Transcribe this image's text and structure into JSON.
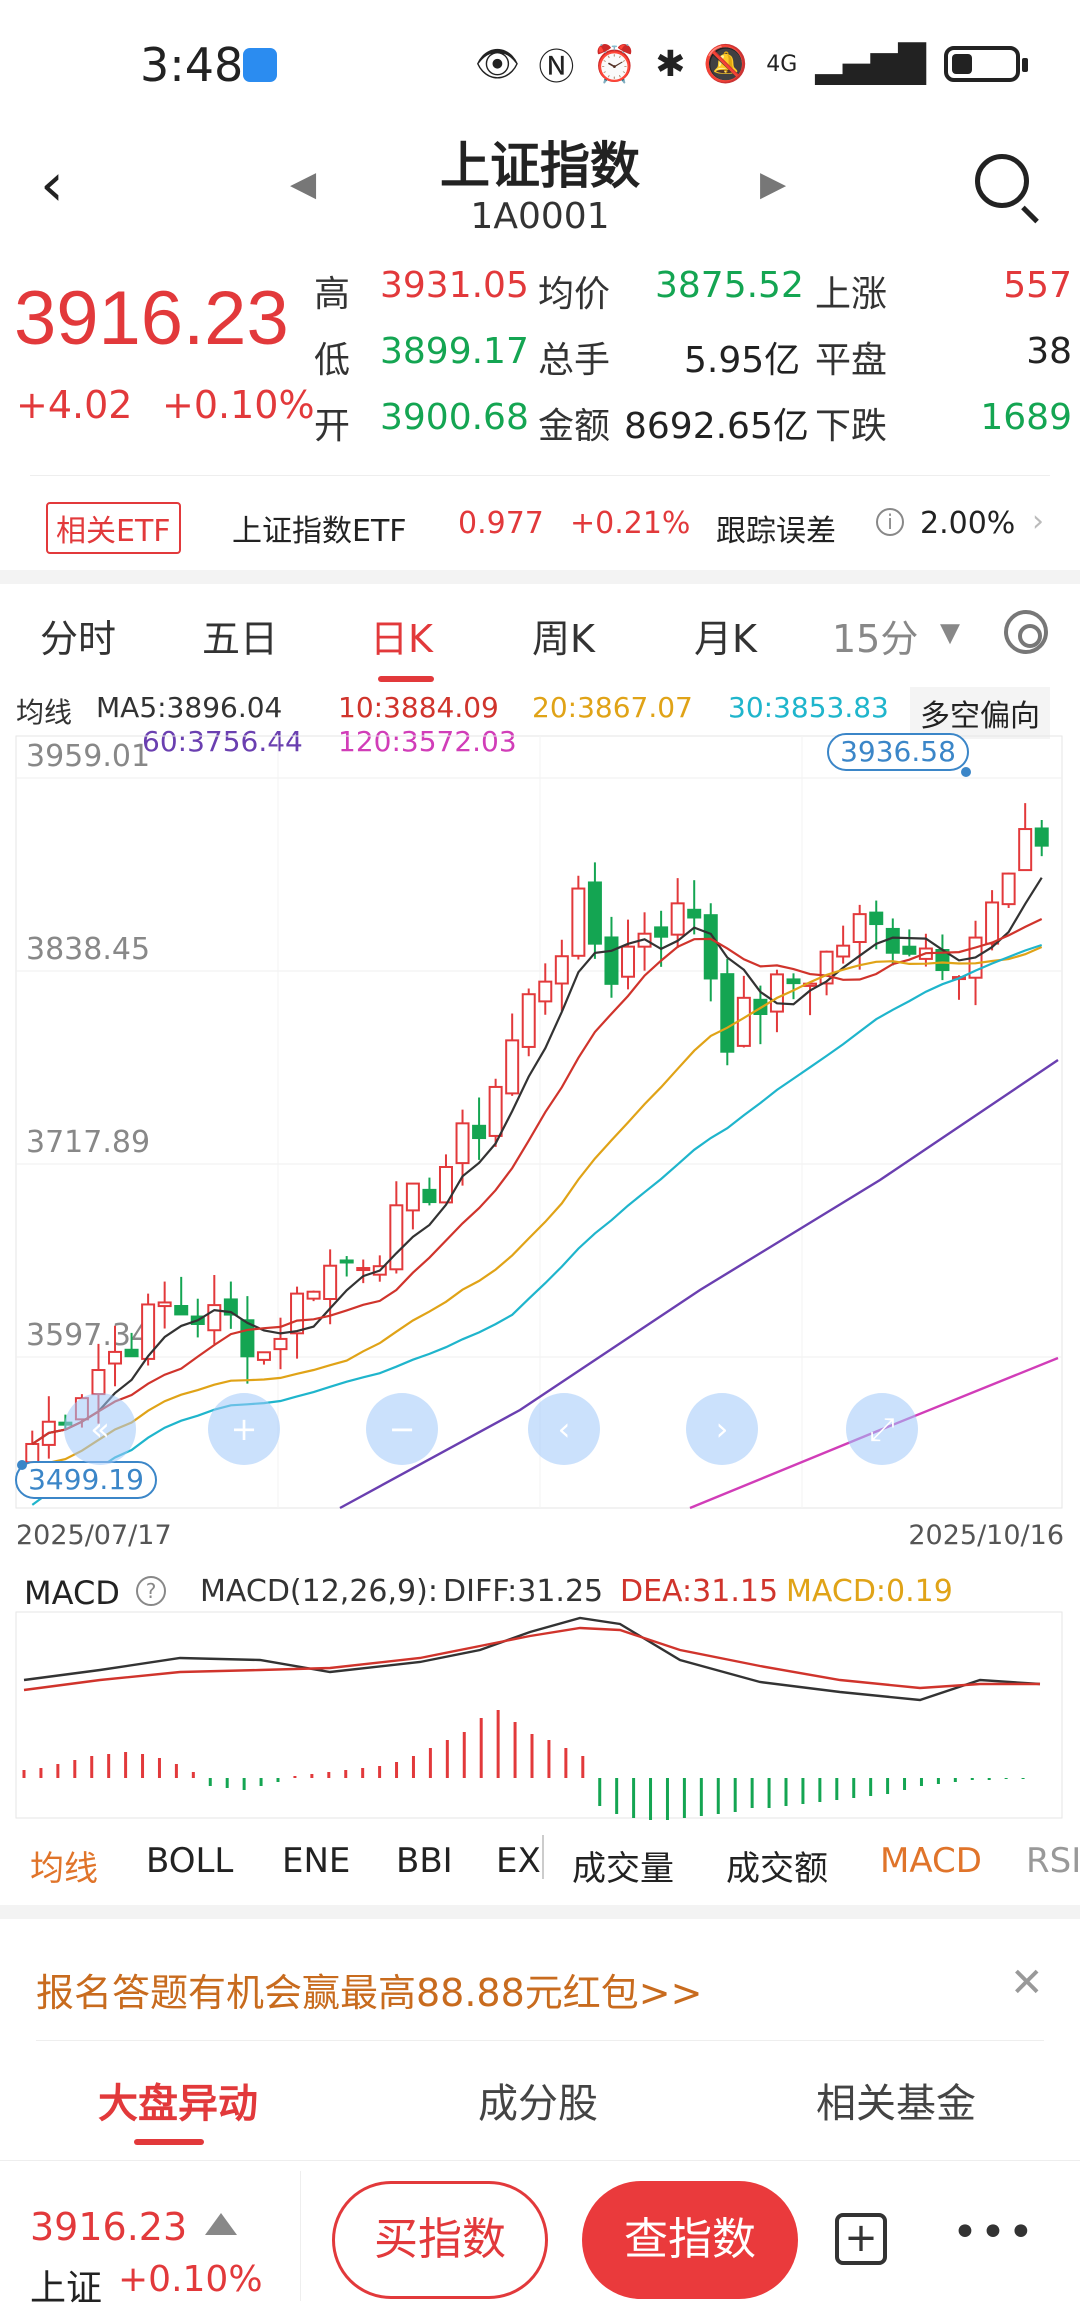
{
  "status": {
    "time": "3:48",
    "net": "4G"
  },
  "header": {
    "title": "上证指数",
    "code": "1A0001"
  },
  "quote": {
    "price": "3916.23",
    "change": "+4.02",
    "pct": "+0.10%",
    "cells": [
      {
        "label": "高",
        "value": "3931.05",
        "color": "red"
      },
      {
        "label": "均价",
        "value": "3875.52",
        "color": "green"
      },
      {
        "label": "上涨",
        "value": "557",
        "color": "red"
      },
      {
        "label": "低",
        "value": "3899.17",
        "color": "green"
      },
      {
        "label": "总手",
        "value": "5.95亿",
        "color": "black"
      },
      {
        "label": "平盘",
        "value": "38",
        "color": "black"
      },
      {
        "label": "开",
        "value": "3900.68",
        "color": "green"
      },
      {
        "label": "金额",
        "value": "8692.65亿",
        "color": "black"
      },
      {
        "label": "下跌",
        "value": "1689",
        "color": "green"
      }
    ]
  },
  "etf": {
    "badge": "相关ETF",
    "name": "上证指数ETF",
    "price": "0.977",
    "pct": "+0.21%",
    "label": "跟踪误差",
    "value": "2.00%"
  },
  "tabs": [
    "分时",
    "五日",
    "日K",
    "周K",
    "月K",
    "15分"
  ],
  "ma": {
    "label": "均线",
    "ma5": "MA5:3896.04",
    "ma10": "10:3884.09",
    "ma20": "20:3867.07",
    "ma30": "30:3853.83",
    "ma60": "60:3756.44",
    "ma120": "120:3572.03",
    "bias": "多空偏向",
    "colors": {
      "ma5": "#333333",
      "ma10": "#d0342c",
      "ma20": "#e0a317",
      "ma30": "#1fb5cc",
      "ma60": "#6a3fb0",
      "ma120": "#d13db8"
    }
  },
  "chart_data": {
    "type": "candlestick",
    "yticks": [
      "3959.01",
      "3838.45",
      "3717.89",
      "3597.34"
    ],
    "ylim": [
      3499.19,
      3959.01
    ],
    "high_label": "3936.58",
    "low_label": "3499.19",
    "date_start": "2025/07/17",
    "date_end": "2025/10/16"
  },
  "macd": {
    "title": "MACD",
    "params": "MACD(12,26,9):",
    "diff": "DIFF:31.25",
    "dea": "DEA:31.15",
    "macd": "MACD:0.19"
  },
  "indicators": [
    "均线",
    "BOLL",
    "ENE",
    "BBI",
    "EX",
    "成交量",
    "成交额",
    "MACD",
    "RSI"
  ],
  "promo": {
    "text": "报名答题有机会赢最高88.88元红包>>"
  },
  "subtabs": [
    "大盘异动",
    "成分股",
    "相关基金"
  ],
  "bottom": {
    "price": "3916.23",
    "name": "上证",
    "pct": "+0.10%",
    "buy": "买指数",
    "check": "查指数"
  }
}
